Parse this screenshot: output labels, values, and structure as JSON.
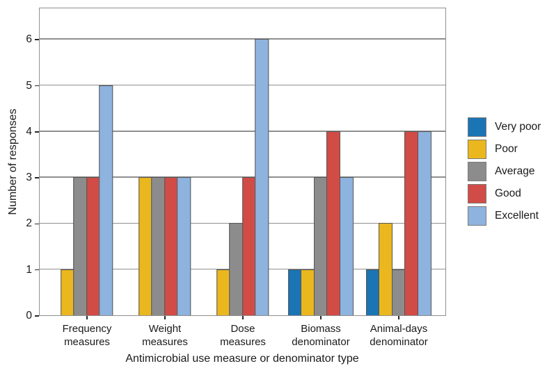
{
  "chart_data": {
    "type": "bar",
    "title": "",
    "xlabel": "Antimicrobial use measure or denominator type",
    "ylabel": "Number of responses",
    "categories": [
      "Frequency measures",
      "Weight measures",
      "Dose measures",
      "Biomass denominator",
      "Animal-days denominator"
    ],
    "category_label_lines": [
      [
        "Frequency",
        "measures"
      ],
      [
        "Weight",
        "measures"
      ],
      [
        "Dose",
        "measures"
      ],
      [
        "Biomass",
        "denominator"
      ],
      [
        "Animal-days",
        "denominator"
      ]
    ],
    "series": [
      {
        "name": "Very poor",
        "color": "#1b74b4",
        "values": [
          0,
          0,
          0,
          1,
          1
        ]
      },
      {
        "name": "Poor",
        "color": "#eab71e",
        "values": [
          1,
          3,
          1,
          1,
          2
        ]
      },
      {
        "name": "Average",
        "color": "#8c8c8c",
        "values": [
          3,
          3,
          2,
          3,
          1
        ]
      },
      {
        "name": "Good",
        "color": "#d14c46",
        "values": [
          3,
          3,
          3,
          4,
          4
        ]
      },
      {
        "name": "Excellent",
        "color": "#8db3de",
        "values": [
          5,
          3,
          6,
          3,
          4
        ]
      }
    ],
    "yticks": [
      0,
      1,
      2,
      3,
      4,
      5,
      6
    ],
    "ylim": [
      0,
      6.7
    ],
    "grid": true,
    "legend_position": "right",
    "bar_outline_color": "#555555",
    "grid_color": "#8f8f8f",
    "zero_values_not_drawn": true
  }
}
